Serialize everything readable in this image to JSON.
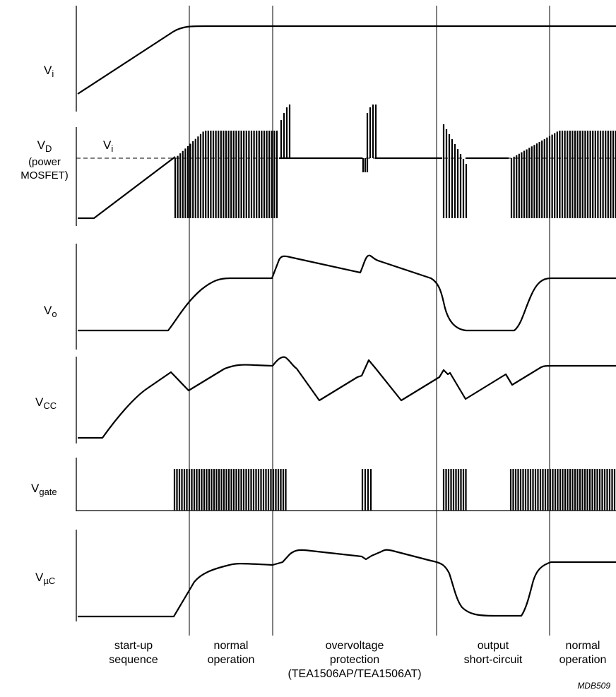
{
  "signals": {
    "vi": {
      "base": "V",
      "sub": "i"
    },
    "vd": {
      "base": "V",
      "sub": "D",
      "note_line1": "(power",
      "note_line2": "MOSFET)"
    },
    "vd_ref": {
      "base": "V",
      "sub": "i"
    },
    "vo": {
      "base": "V",
      "sub": "o"
    },
    "vcc": {
      "base": "V",
      "sub": "CC"
    },
    "vgate": {
      "base": "V",
      "sub": "gate"
    },
    "vuc": {
      "base": "V",
      "sub": "µC"
    }
  },
  "phases": [
    {
      "line1": "start-up",
      "line2": "sequence"
    },
    {
      "line1": "normal",
      "line2": "operation"
    },
    {
      "line1": "overvoltage",
      "line2": "protection",
      "line3": "(TEA1506AP/TEA1506AT)"
    },
    {
      "line1": "output",
      "line2": "short-circuit"
    },
    {
      "line1": "normal",
      "line2": "operation"
    }
  ],
  "figure_code": "MDB509"
}
